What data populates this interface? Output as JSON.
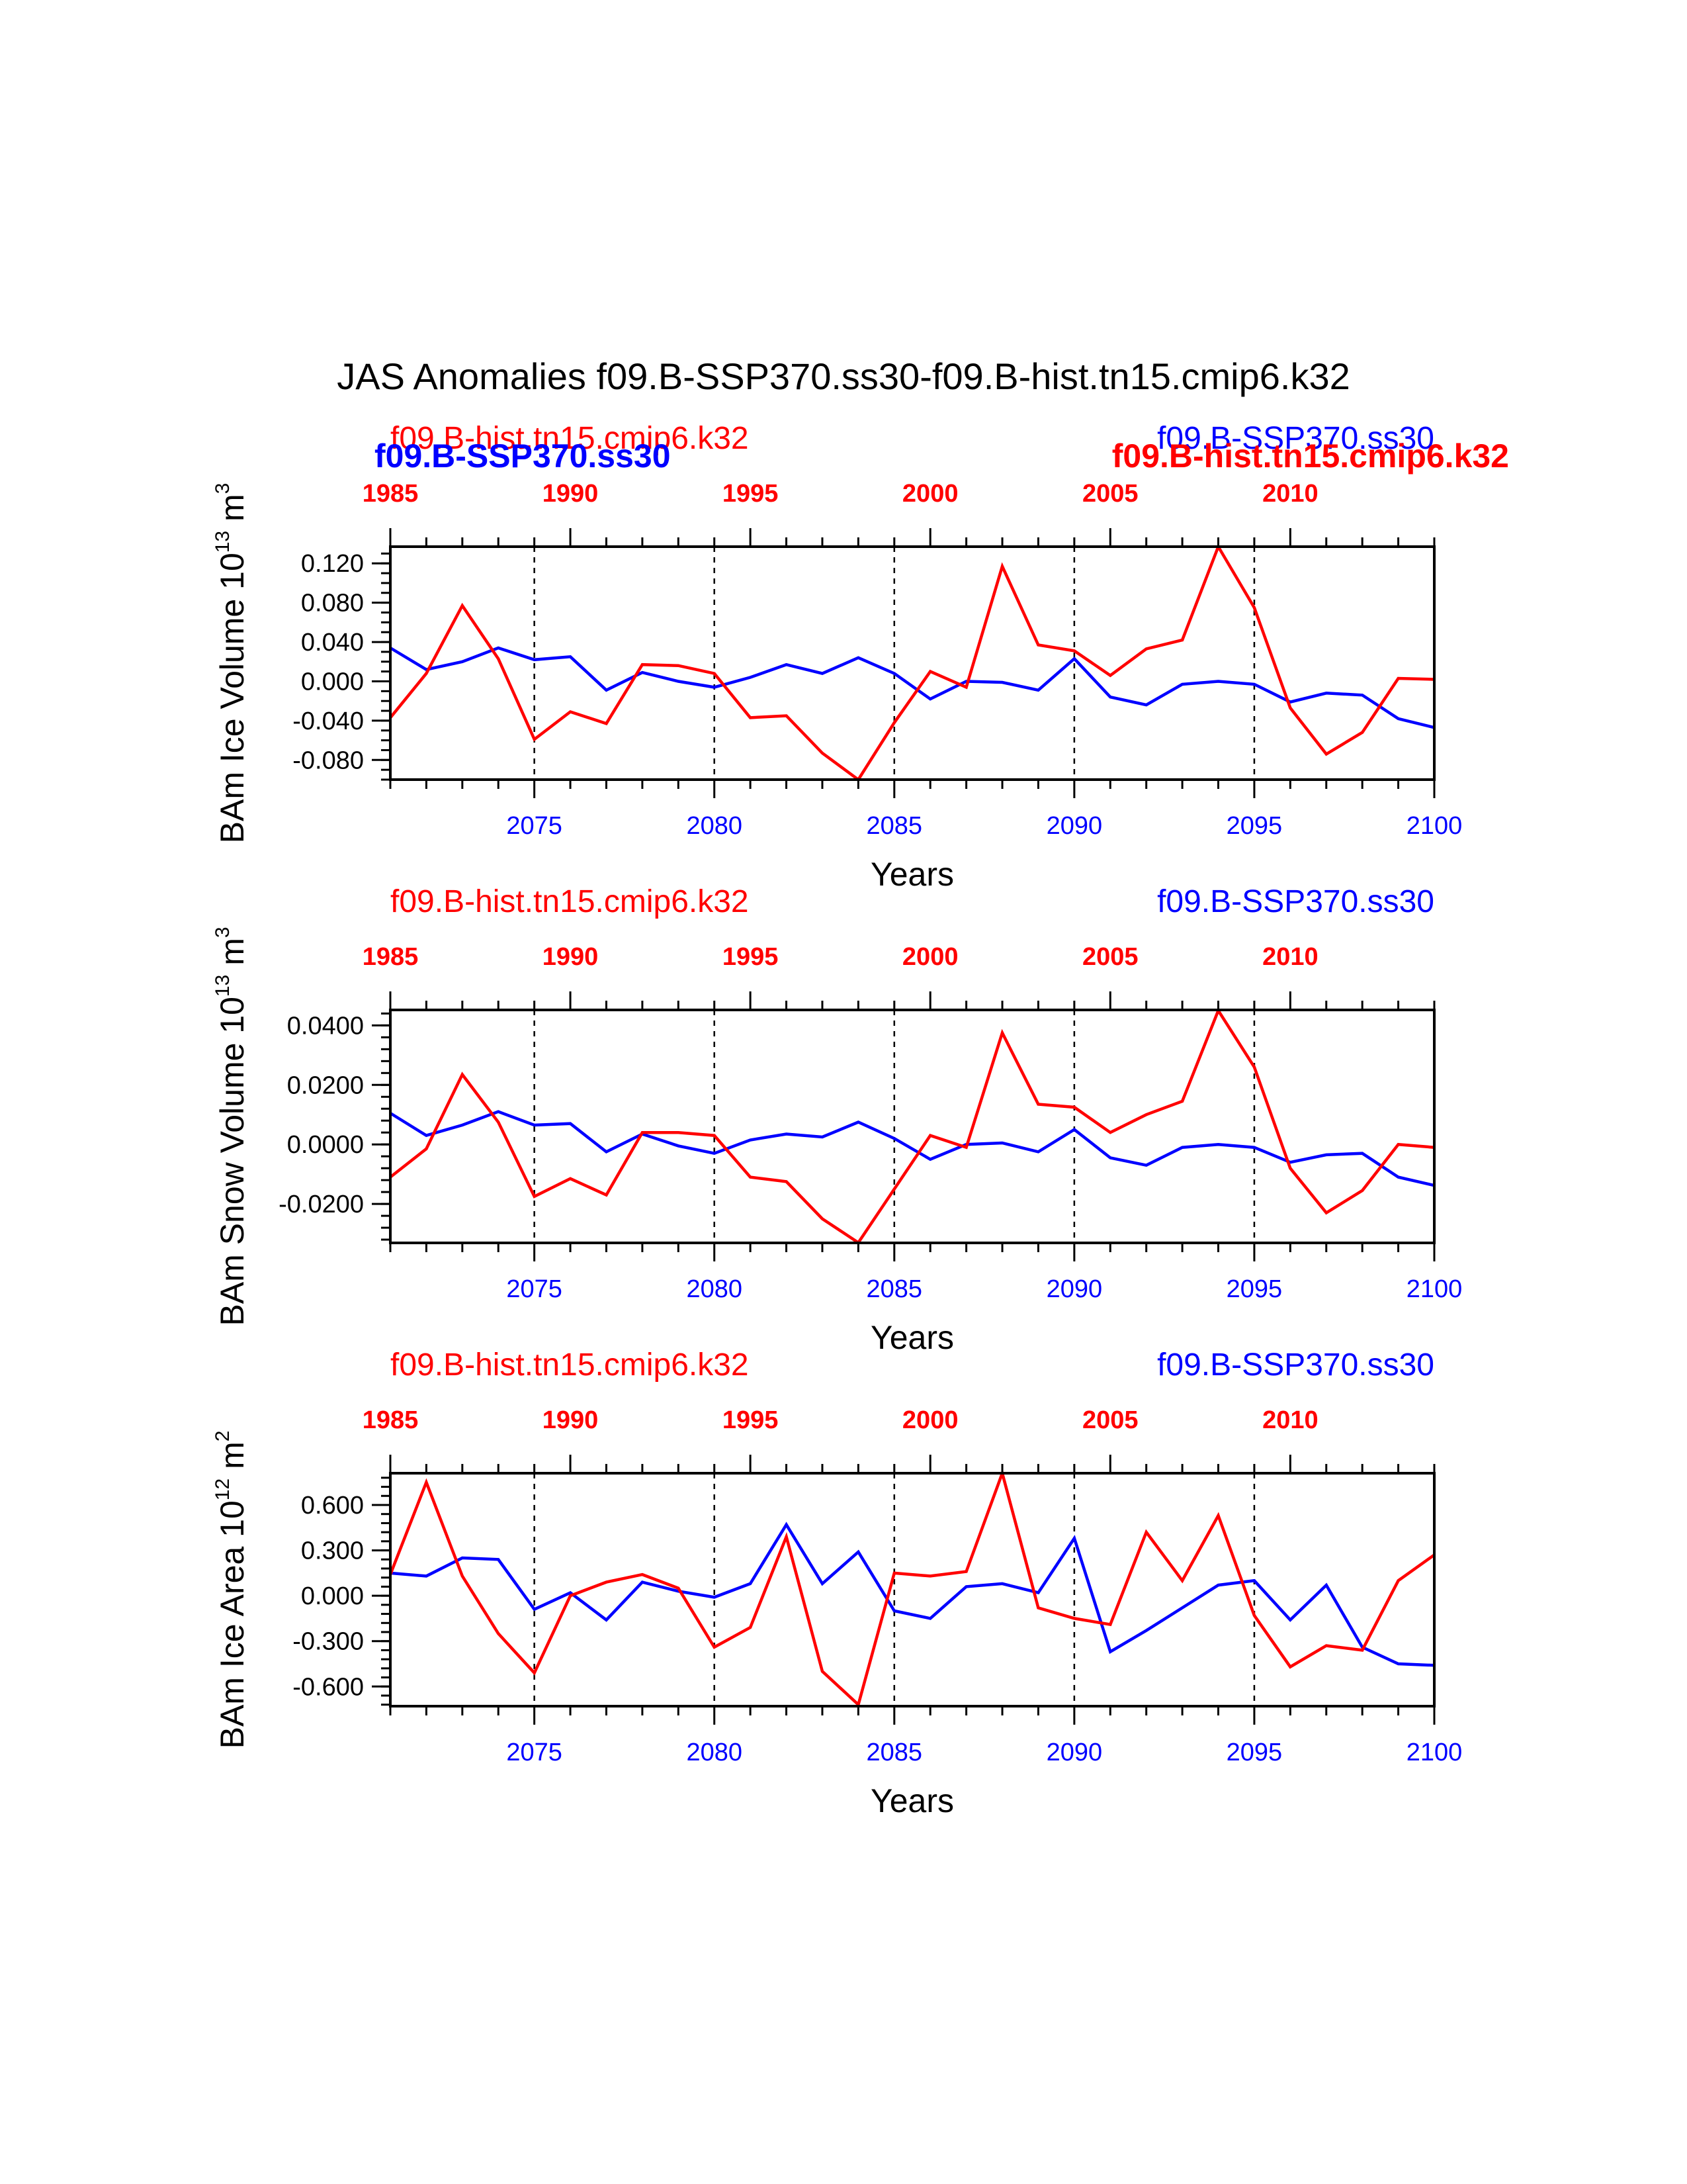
{
  "figure_title": "JAS Anomalies f09.B-SSP370.ss30-f09.B-hist.tn15.cmip6.k32",
  "colors": {
    "ssp": "#0000ff",
    "hist": "#ff0000",
    "axis": "#000000"
  },
  "case_labels": {
    "hist": "f09.B-hist.tn15.cmip6.k32",
    "ssp": "f09.B-SSP370.ss30"
  },
  "chart_data": [
    {
      "type": "line",
      "id": "ice-volume",
      "ylabel": "BAm Ice Volume 10",
      "ylabel_exp": "13",
      "ylabel_unit": "m",
      "ylabel_unit_exp": "3",
      "xlabel": "Years",
      "xlim": [
        2071,
        2100
      ],
      "ylim": [
        -0.1,
        0.137
      ],
      "yticks": [
        0.12,
        0.08,
        0.04,
        0.0,
        -0.04,
        -0.08
      ],
      "ytick_labels": [
        "0.120",
        "0.080",
        "0.040",
        "0.000",
        "-0.040",
        "-0.080"
      ],
      "ytick_minor_step": 0.01,
      "bottom_ticks": [
        2075,
        2080,
        2085,
        2090,
        2095,
        2100
      ],
      "bottom_tick_labels": [
        "2075",
        "2080",
        "2085",
        "2090",
        "2095",
        "2100"
      ],
      "top_ticks": [
        1985,
        1990,
        1995,
        2000,
        2005,
        2010
      ],
      "top_tick_labels": [
        "1985",
        "1990",
        "1995",
        "2000",
        "2005",
        "2010"
      ],
      "top_xlim": [
        1985,
        2014
      ],
      "top_labels_overlap": true,
      "series": [
        {
          "name": "f09.B-SSP370.ss30",
          "color": "#0000ff",
          "x": [
            2071,
            2072,
            2073,
            2074,
            2075,
            2076,
            2077,
            2078,
            2079,
            2080,
            2081,
            2082,
            2083,
            2084,
            2085,
            2086,
            2087,
            2088,
            2089,
            2090,
            2091,
            2092,
            2093,
            2094,
            2095,
            2096,
            2097,
            2098,
            2099,
            2100
          ],
          "values": [
            0.034,
            0.012,
            0.02,
            0.034,
            0.022,
            0.025,
            -0.009,
            0.009,
            0.0,
            -0.006,
            0.004,
            0.017,
            0.008,
            0.024,
            0.008,
            -0.018,
            0.0,
            -0.001,
            -0.009,
            0.023,
            -0.016,
            -0.024,
            -0.003,
            0.0,
            -0.003,
            -0.021,
            -0.012,
            -0.014,
            -0.038,
            -0.047
          ]
        },
        {
          "name": "f09.B-hist.tn15.cmip6.k32",
          "color": "#ff0000",
          "x": [
            2071,
            2072,
            2073,
            2074,
            2075,
            2076,
            2077,
            2078,
            2079,
            2080,
            2081,
            2082,
            2083,
            2084,
            2085,
            2086,
            2087,
            2088,
            2089,
            2090,
            2091,
            2092,
            2093,
            2094,
            2095,
            2096,
            2097,
            2098,
            2099,
            2100
          ],
          "values": [
            -0.037,
            0.008,
            0.077,
            0.023,
            -0.059,
            -0.031,
            -0.043,
            0.017,
            0.016,
            0.008,
            -0.037,
            -0.035,
            -0.073,
            -0.1,
            -0.042,
            0.01,
            -0.006,
            0.117,
            0.037,
            0.031,
            0.006,
            0.033,
            0.042,
            0.137,
            0.075,
            -0.027,
            -0.074,
            -0.052,
            0.003,
            0.002
          ]
        }
      ]
    },
    {
      "type": "line",
      "id": "snow-volume",
      "ylabel": "BAm Snow Volume 10",
      "ylabel_exp": "13",
      "ylabel_unit": "m",
      "ylabel_unit_exp": "3",
      "xlabel": "Years",
      "xlim": [
        2071,
        2100
      ],
      "ylim": [
        -0.0331,
        0.0452
      ],
      "yticks": [
        0.04,
        0.02,
        0.0,
        -0.02
      ],
      "ytick_labels": [
        "0.0400",
        "0.0200",
        "0.0000",
        "-0.0200"
      ],
      "ytick_minor_step": 0.004,
      "bottom_ticks": [
        2075,
        2080,
        2085,
        2090,
        2095,
        2100
      ],
      "bottom_tick_labels": [
        "2075",
        "2080",
        "2085",
        "2090",
        "2095",
        "2100"
      ],
      "top_ticks": [
        1985,
        1990,
        1995,
        2000,
        2005,
        2010
      ],
      "top_tick_labels": [
        "1985",
        "1990",
        "1995",
        "2000",
        "2005",
        "2010"
      ],
      "top_xlim": [
        1985,
        2014
      ],
      "top_labels_overlap": false,
      "series": [
        {
          "name": "f09.B-SSP370.ss30",
          "color": "#0000ff",
          "x": [
            2071,
            2072,
            2073,
            2074,
            2075,
            2076,
            2077,
            2078,
            2079,
            2080,
            2081,
            2082,
            2083,
            2084,
            2085,
            2086,
            2087,
            2088,
            2089,
            2090,
            2091,
            2092,
            2093,
            2094,
            2095,
            2096,
            2097,
            2098,
            2099,
            2100
          ],
          "values": [
            0.0105,
            0.003,
            0.0065,
            0.011,
            0.0065,
            0.007,
            -0.0025,
            0.0035,
            -0.0005,
            -0.003,
            0.0015,
            0.0035,
            0.0025,
            0.0075,
            0.002,
            -0.005,
            0.0,
            0.0005,
            -0.0025,
            0.005,
            -0.0045,
            -0.007,
            -0.001,
            0.0,
            -0.001,
            -0.006,
            -0.0035,
            -0.003,
            -0.011,
            -0.0138
          ]
        },
        {
          "name": "f09.B-hist.tn15.cmip6.k32",
          "color": "#ff0000",
          "x": [
            2071,
            2072,
            2073,
            2074,
            2075,
            2076,
            2077,
            2078,
            2079,
            2080,
            2081,
            2082,
            2083,
            2084,
            2085,
            2086,
            2087,
            2088,
            2089,
            2090,
            2091,
            2092,
            2093,
            2094,
            2095,
            2096,
            2097,
            2098,
            2099,
            2100
          ],
          "values": [
            -0.011,
            -0.0015,
            0.0235,
            0.0075,
            -0.0175,
            -0.0115,
            -0.017,
            0.004,
            0.004,
            0.003,
            -0.011,
            -0.0125,
            -0.025,
            -0.033,
            -0.015,
            0.003,
            -0.001,
            0.0375,
            0.0135,
            0.0125,
            0.004,
            0.01,
            0.0145,
            0.045,
            0.026,
            -0.008,
            -0.023,
            -0.0155,
            0.0,
            -0.001
          ]
        }
      ]
    },
    {
      "type": "line",
      "id": "ice-area",
      "ylabel": "BAm Ice Area 10",
      "ylabel_exp": "12",
      "ylabel_unit": "m",
      "ylabel_unit_exp": "2",
      "xlabel": "Years",
      "xlim": [
        2071,
        2100
      ],
      "ylim": [
        -0.73,
        0.81
      ],
      "yticks": [
        0.6,
        0.3,
        0.0,
        -0.3,
        -0.6
      ],
      "ytick_labels": [
        "0.600",
        "0.300",
        "0.000",
        "-0.300",
        "-0.600"
      ],
      "ytick_minor_step": 0.06,
      "bottom_ticks": [
        2075,
        2080,
        2085,
        2090,
        2095,
        2100
      ],
      "bottom_tick_labels": [
        "2075",
        "2080",
        "2085",
        "2090",
        "2095",
        "2100"
      ],
      "top_ticks": [
        1985,
        1990,
        1995,
        2000,
        2005,
        2010
      ],
      "top_tick_labels": [
        "1985",
        "1990",
        "1995",
        "2000",
        "2005",
        "2010"
      ],
      "top_xlim": [
        1985,
        2014
      ],
      "top_labels_overlap": false,
      "series": [
        {
          "name": "f09.B-SSP370.ss30",
          "color": "#0000ff",
          "x": [
            2071,
            2072,
            2073,
            2074,
            2075,
            2076,
            2077,
            2078,
            2079,
            2080,
            2081,
            2082,
            2083,
            2084,
            2085,
            2086,
            2087,
            2088,
            2089,
            2090,
            2091,
            2092,
            2093,
            2094,
            2095,
            2096,
            2097,
            2098,
            2099,
            2100
          ],
          "values": [
            0.15,
            0.13,
            0.25,
            0.24,
            -0.09,
            0.02,
            -0.16,
            0.09,
            0.03,
            -0.01,
            0.08,
            0.47,
            0.08,
            0.29,
            -0.1,
            -0.15,
            0.06,
            0.08,
            0.02,
            0.38,
            -0.37,
            -0.23,
            -0.08,
            0.07,
            0.1,
            -0.16,
            0.07,
            -0.34,
            -0.45,
            -0.46
          ]
        },
        {
          "name": "f09.B-hist.tn15.cmip6.k32",
          "color": "#ff0000",
          "x": [
            2071,
            2072,
            2073,
            2074,
            2075,
            2076,
            2077,
            2078,
            2079,
            2080,
            2081,
            2082,
            2083,
            2084,
            2085,
            2086,
            2087,
            2088,
            2089,
            2090,
            2091,
            2092,
            2093,
            2094,
            2095,
            2096,
            2097,
            2098,
            2099,
            2100
          ],
          "values": [
            0.14,
            0.75,
            0.13,
            -0.25,
            -0.51,
            0.0,
            0.09,
            0.14,
            0.05,
            -0.34,
            -0.21,
            0.39,
            -0.5,
            -0.72,
            0.15,
            0.13,
            0.16,
            0.81,
            -0.08,
            -0.15,
            -0.19,
            0.42,
            0.1,
            0.53,
            -0.13,
            -0.47,
            -0.33,
            -0.36,
            0.1,
            0.27
          ]
        }
      ]
    }
  ]
}
